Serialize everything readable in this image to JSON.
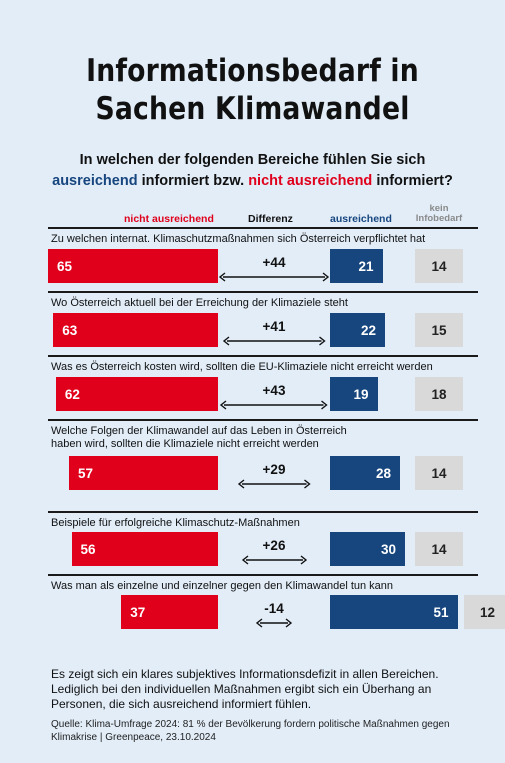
{
  "title_line1": "Informationsbedarf in",
  "title_line2": "Sachen Klimawandel",
  "question": {
    "part1": "In welchen der folgenden Bereiche fühlen Sie sich",
    "blue": "ausreichend",
    "mid": " informiert bzw. ",
    "red": "nicht ausreichend",
    "end": " informiert?"
  },
  "headers": {
    "nicht": "nicht ausreichend",
    "diff": "Differenz",
    "aus": "ausreichend",
    "kein_line1": "kein",
    "kein_line2": "Infobedarf"
  },
  "colors": {
    "red": "#e0001b",
    "blue": "#17467f",
    "grey": "#d9d9d9",
    "background": "#e2edf8"
  },
  "summary": "Es zeigt sich ein klares subjektives Informationsdefizit in allen Bereichen. Lediglich bei den individuellen Maßnahmen ergibt sich ein Überhang an Personen, die sich ausreichend informiert fühlen.",
  "source": "Quelle: Klima-Umfrage 2024: 81 % der Bevölkerung fordern politische Maßnahmen gegen Klimakrise | Greenpeace, 23.10.2024",
  "chart_data": {
    "type": "bar",
    "categories": [
      "Zu welchen internat. Klimaschutzmaßnahmen sich Österreich verpflichtet hat",
      "Wo Österreich aktuell bei der Erreichung der Klimaziele steht",
      "Was es Österreich kosten wird, sollten die EU-Klimaziele nicht erreicht werden",
      "Welche Folgen der Klimawandel auf das Leben in Österreich haben wird, sollten die Klimaziele nicht erreicht werden",
      "Beispiele für erfolgreiche Klimaschutz-Maßnahmen",
      "Was man als einzelne und einzelner gegen den Klimawandel tun kann"
    ],
    "category_lines": [
      [
        "Zu welchen internat. Klimaschutzmaßnahmen sich Österreich verpflichtet hat"
      ],
      [
        "Wo Österreich aktuell bei der Erreichung der Klimaziele steht"
      ],
      [
        "Was es Österreich kosten wird, sollten die EU-Klimaziele nicht erreicht werden"
      ],
      [
        "Welche Folgen der Klimawandel auf das Leben in Österreich",
        "haben wird, sollten die Klimaziele nicht erreicht werden"
      ],
      [
        "Beispiele für erfolgreiche Klimaschutz-Maßnahmen"
      ],
      [
        "Was man als einzelne und einzelner gegen den Klimawandel tun kann"
      ]
    ],
    "series": [
      {
        "name": "nicht ausreichend",
        "values": [
          65,
          63,
          62,
          57,
          56,
          37
        ]
      },
      {
        "name": "ausreichend",
        "values": [
          21,
          22,
          19,
          28,
          30,
          51
        ]
      },
      {
        "name": "kein Infobedarf",
        "values": [
          14,
          15,
          18,
          14,
          14,
          12
        ]
      }
    ],
    "difference": [
      "+44",
      "+41",
      "+43",
      "+29",
      "+26",
      "-14"
    ]
  }
}
